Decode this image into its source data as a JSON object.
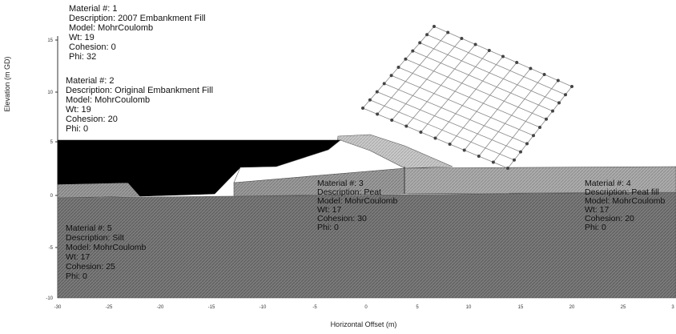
{
  "figure": {
    "ylabel": "Elevation (m GD)",
    "xlabel": "Horizontal Offset (m)",
    "x_ticks": [
      "-30",
      "-25",
      "-20",
      "-15",
      "-10",
      "-5",
      "0",
      "5",
      "10",
      "15",
      "20",
      "25",
      "3"
    ],
    "y_ticks": [
      "15",
      "10",
      "5",
      "0",
      "-5",
      "-10"
    ]
  },
  "materials": [
    {
      "num_line": "Material #: 1",
      "description_line": "Description: 2007 Embankment Fill",
      "model_line": "Model: MohrCoulomb",
      "wt_line": "Wt: 19",
      "cohesion_line": "Cohesion: 0",
      "phi_line": "Phi: 32"
    },
    {
      "num_line": "Material #: 2",
      "description_line": "Description: Original Embankment Fill",
      "model_line": "Model: MohrCoulomb",
      "wt_line": "Wt: 19",
      "cohesion_line": "Cohesion: 20",
      "phi_line": "Phi: 0"
    },
    {
      "num_line": "Material #: 3",
      "description_line": "Description: Peat",
      "model_line": "Model: MohrCoulomb",
      "wt_line": "Wt: 17",
      "cohesion_line": "Cohesion: 30",
      "phi_line": "Phi: 0"
    },
    {
      "num_line": "Material #: 4",
      "description_line": "Description: Peat fill",
      "model_line": "Model: MohrCoulomb",
      "wt_line": "Wt: 17",
      "cohesion_line": "Cohesion: 20",
      "phi_line": "Phi: 0"
    },
    {
      "num_line": "Material #: 5",
      "description_line": "Description: Silt",
      "model_line": "Model: MohrCoulomb",
      "wt_line": "Wt: 17",
      "cohesion_line": "Cohesion: 25",
      "phi_line": "Phi: 0"
    }
  ],
  "grid": {
    "rows": 10,
    "cols": 10
  },
  "colors": {
    "soil_dark": "#6a6a6a",
    "soil_mid": "#9a9a9a",
    "soil_light": "#c8c8c8",
    "embankment_black": "#000000",
    "grid_line": "#888888",
    "grid_dot": "#444444"
  }
}
